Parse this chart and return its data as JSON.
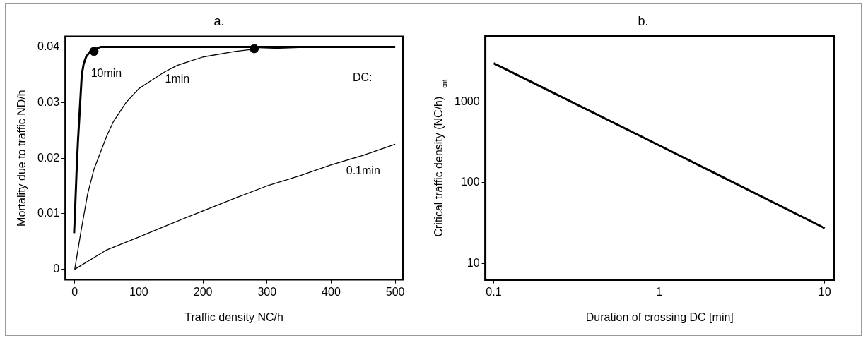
{
  "chart_data": [
    {
      "type": "line",
      "title": "a.",
      "xlabel": "Traffic density NC/h",
      "ylabel": "Mortality due to traffic ND/h",
      "xlim": [
        -15,
        512
      ],
      "xticks": [
        0,
        100,
        200,
        300,
        400,
        500
      ],
      "ylim": [
        -0.0019,
        0.0419
      ],
      "yticks": [
        0,
        0.01,
        0.02,
        0.03,
        0.04
      ],
      "grid": false,
      "legend": false,
      "marker": "none",
      "series": [
        {
          "name": "10min",
          "color": "#000000",
          "x": [
            -1,
            1,
            3,
            5,
            7,
            9,
            11,
            14,
            18,
            25,
            40,
            500
          ],
          "values": [
            0.0065,
            0.012,
            0.018,
            0.023,
            0.027,
            0.031,
            0.035,
            0.037,
            0.0383,
            0.0393,
            0.04,
            0.04
          ]
        },
        {
          "name": "1min",
          "color": "#000000",
          "x": [
            0,
            10,
            20,
            30,
            40,
            50,
            60,
            80,
            100,
            120,
            140,
            160,
            200,
            250,
            280,
            350,
            470
          ],
          "values": [
            0,
            0.007,
            0.0135,
            0.018,
            0.021,
            0.024,
            0.0265,
            0.03,
            0.0325,
            0.034,
            0.0355,
            0.0367,
            0.0382,
            0.0392,
            0.0396,
            0.0399,
            0.04
          ]
        },
        {
          "name": "0.1min",
          "color": "#000000",
          "x": [
            0,
            50,
            100,
            150,
            200,
            250,
            300,
            350,
            400,
            450,
            500
          ],
          "values": [
            0,
            0.0035,
            0.0058,
            0.0082,
            0.0105,
            0.0128,
            0.015,
            0.0168,
            0.0188,
            0.0205,
            0.0225
          ]
        },
        {
          "type": "scatter",
          "marker": "circle",
          "color": "#000000",
          "x": [
            30,
            280
          ],
          "values": [
            0.0392,
            0.0397
          ]
        }
      ],
      "annotations": [
        "DC:"
      ]
    },
    {
      "type": "line",
      "title": "b.",
      "xlabel": "Duration of crossing DC [min]",
      "ylabel": "Critical traffic density (NC/h)$_{crit}$",
      "log": "xy",
      "xlim": [
        0.089,
        11.4
      ],
      "xticks": [
        0.1,
        1,
        10
      ],
      "ylim": [
        6.3,
        6450
      ],
      "yticks": [
        10,
        100,
        1000
      ],
      "grid": false,
      "legend": false,
      "marker": "none",
      "series": [
        {
          "color": "#000000",
          "x": [
            0.1,
            1,
            10
          ],
          "values": [
            3000,
            290,
            27.5
          ]
        }
      ]
    }
  ]
}
